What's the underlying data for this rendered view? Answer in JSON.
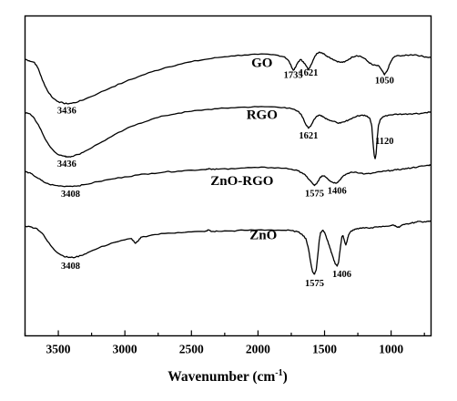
{
  "chart_data": {
    "type": "line",
    "title": "",
    "xlabel": {
      "main": "Wavenumber (cm",
      "sup": "-1",
      "close": ")"
    },
    "ylabel": "",
    "xlim": [
      3750,
      700
    ],
    "x_reversed": true,
    "y_axis_shown": false,
    "grid": false,
    "xticks": [
      3500,
      3000,
      2500,
      2000,
      1500,
      1000
    ],
    "xtick_labels": [
      "3500",
      "3000",
      "2500",
      "2000",
      "1500",
      "1000"
    ],
    "y_units": "stacked transmittance (arbitrary offset units, 0 = bottom of frame, 100 = top)",
    "series": [
      {
        "name": "GO",
        "points": [
          [
            3750,
            86.5
          ],
          [
            3720,
            86.0
          ],
          [
            3680,
            85.5
          ],
          [
            3650,
            83.5
          ],
          [
            3620,
            80.0
          ],
          [
            3580,
            76.5
          ],
          [
            3540,
            74.3
          ],
          [
            3500,
            73.2
          ],
          [
            3460,
            72.7
          ],
          [
            3436,
            72.6
          ],
          [
            3400,
            72.7
          ],
          [
            3350,
            73.2
          ],
          [
            3300,
            74.0
          ],
          [
            3200,
            75.8
          ],
          [
            3100,
            77.7
          ],
          [
            3000,
            79.4
          ],
          [
            2900,
            81.0
          ],
          [
            2800,
            82.5
          ],
          [
            2700,
            83.8
          ],
          [
            2600,
            84.8
          ],
          [
            2500,
            85.7
          ],
          [
            2400,
            86.4
          ],
          [
            2300,
            87.0
          ],
          [
            2200,
            87.5
          ],
          [
            2100,
            87.8
          ],
          [
            2000,
            88.0
          ],
          [
            1900,
            87.9
          ],
          [
            1850,
            87.7
          ],
          [
            1800,
            87.2
          ],
          [
            1770,
            86.0
          ],
          [
            1750,
            84.3
          ],
          [
            1735,
            83.0
          ],
          [
            1720,
            83.8
          ],
          [
            1700,
            85.5
          ],
          [
            1680,
            86.4
          ],
          [
            1660,
            85.7
          ],
          [
            1640,
            84.5
          ],
          [
            1621,
            83.2
          ],
          [
            1605,
            84.5
          ],
          [
            1580,
            86.7
          ],
          [
            1560,
            88.2
          ],
          [
            1540,
            88.7
          ],
          [
            1520,
            88.5
          ],
          [
            1500,
            88.0
          ],
          [
            1470,
            87.2
          ],
          [
            1440,
            86.5
          ],
          [
            1410,
            85.9
          ],
          [
            1380,
            85.5
          ],
          [
            1350,
            85.6
          ],
          [
            1320,
            86.4
          ],
          [
            1290,
            87.2
          ],
          [
            1260,
            87.6
          ],
          [
            1230,
            87.4
          ],
          [
            1200,
            86.7
          ],
          [
            1170,
            85.6
          ],
          [
            1140,
            84.7
          ],
          [
            1110,
            84.5
          ],
          [
            1090,
            84.3
          ],
          [
            1070,
            83.0
          ],
          [
            1050,
            81.6
          ],
          [
            1030,
            82.8
          ],
          [
            1010,
            85.0
          ],
          [
            990,
            86.6
          ],
          [
            970,
            87.4
          ],
          [
            940,
            87.6
          ],
          [
            900,
            87.6
          ],
          [
            860,
            87.8
          ],
          [
            820,
            87.9
          ],
          [
            780,
            87.5
          ],
          [
            740,
            87.2
          ],
          [
            700,
            87.0
          ]
        ]
      },
      {
        "name": "RGO",
        "points": [
          [
            3750,
            69.8
          ],
          [
            3720,
            69.5
          ],
          [
            3690,
            68.5
          ],
          [
            3650,
            66.0
          ],
          [
            3610,
            62.5
          ],
          [
            3570,
            59.6
          ],
          [
            3530,
            57.6
          ],
          [
            3490,
            56.5
          ],
          [
            3450,
            56.1
          ],
          [
            3436,
            56.0
          ],
          [
            3400,
            56.1
          ],
          [
            3350,
            56.7
          ],
          [
            3300,
            57.7
          ],
          [
            3200,
            60.0
          ],
          [
            3100,
            62.3
          ],
          [
            3000,
            64.5
          ],
          [
            2900,
            66.3
          ],
          [
            2800,
            67.7
          ],
          [
            2700,
            68.8
          ],
          [
            2600,
            69.6
          ],
          [
            2500,
            70.2
          ],
          [
            2400,
            70.7
          ],
          [
            2300,
            71.0
          ],
          [
            2200,
            71.3
          ],
          [
            2100,
            71.5
          ],
          [
            2000,
            71.6
          ],
          [
            1900,
            71.6
          ],
          [
            1800,
            71.4
          ],
          [
            1750,
            71.0
          ],
          [
            1700,
            70.2
          ],
          [
            1680,
            69.4
          ],
          [
            1660,
            68.0
          ],
          [
            1640,
            66.0
          ],
          [
            1621,
            64.9
          ],
          [
            1600,
            65.9
          ],
          [
            1580,
            67.6
          ],
          [
            1560,
            68.6
          ],
          [
            1540,
            69.0
          ],
          [
            1520,
            68.8
          ],
          [
            1500,
            68.2
          ],
          [
            1470,
            67.6
          ],
          [
            1440,
            67.1
          ],
          [
            1410,
            66.7
          ],
          [
            1380,
            66.5
          ],
          [
            1350,
            66.9
          ],
          [
            1320,
            67.5
          ],
          [
            1290,
            68.1
          ],
          [
            1260,
            68.6
          ],
          [
            1230,
            68.9
          ],
          [
            1200,
            69.0
          ],
          [
            1180,
            68.7
          ],
          [
            1160,
            68.0
          ],
          [
            1145,
            65.5
          ],
          [
            1135,
            60.0
          ],
          [
            1127,
            56.5
          ],
          [
            1120,
            55.4
          ],
          [
            1113,
            56.8
          ],
          [
            1105,
            61.5
          ],
          [
            1095,
            65.8
          ],
          [
            1080,
            67.7
          ],
          [
            1060,
            68.5
          ],
          [
            1020,
            69.0
          ],
          [
            980,
            69.2
          ],
          [
            940,
            69.3
          ],
          [
            900,
            69.3
          ],
          [
            860,
            69.4
          ],
          [
            820,
            69.5
          ],
          [
            780,
            69.5
          ],
          [
            740,
            69.8
          ],
          [
            700,
            70.0
          ]
        ]
      },
      {
        "name": "ZnO-RGO",
        "points": [
          [
            3750,
            51.3
          ],
          [
            3720,
            51.0
          ],
          [
            3690,
            50.3
          ],
          [
            3650,
            49.2
          ],
          [
            3610,
            48.1
          ],
          [
            3570,
            47.4
          ],
          [
            3520,
            47.0
          ],
          [
            3470,
            46.8
          ],
          [
            3408,
            46.8
          ],
          [
            3350,
            46.9
          ],
          [
            3300,
            47.3
          ],
          [
            3200,
            48.2
          ],
          [
            3100,
            49.0
          ],
          [
            3000,
            49.7
          ],
          [
            2900,
            50.3
          ],
          [
            2800,
            50.8
          ],
          [
            2700,
            51.2
          ],
          [
            2600,
            51.5
          ],
          [
            2500,
            51.8
          ],
          [
            2400,
            52.0
          ],
          [
            2370,
            52.3
          ],
          [
            2350,
            52.0
          ],
          [
            2300,
            52.1
          ],
          [
            2200,
            52.3
          ],
          [
            2100,
            52.5
          ],
          [
            2000,
            52.6
          ],
          [
            1900,
            52.6
          ],
          [
            1800,
            52.4
          ],
          [
            1750,
            52.1
          ],
          [
            1700,
            51.6
          ],
          [
            1670,
            51.0
          ],
          [
            1640,
            50.0
          ],
          [
            1610,
            48.6
          ],
          [
            1590,
            47.6
          ],
          [
            1575,
            47.0
          ],
          [
            1560,
            47.5
          ],
          [
            1540,
            49.0
          ],
          [
            1520,
            50.0
          ],
          [
            1500,
            50.0
          ],
          [
            1480,
            49.3
          ],
          [
            1460,
            48.5
          ],
          [
            1440,
            48.0
          ],
          [
            1420,
            47.8
          ],
          [
            1406,
            47.9
          ],
          [
            1390,
            48.5
          ],
          [
            1370,
            49.5
          ],
          [
            1340,
            50.5
          ],
          [
            1310,
            51.0
          ],
          [
            1270,
            51.2
          ],
          [
            1230,
            50.9
          ],
          [
            1200,
            50.6
          ],
          [
            1160,
            50.7
          ],
          [
            1120,
            51.0
          ],
          [
            1080,
            51.3
          ],
          [
            1040,
            51.5
          ],
          [
            1000,
            51.7
          ],
          [
            960,
            51.9
          ],
          [
            920,
            52.1
          ],
          [
            880,
            52.3
          ],
          [
            840,
            52.6
          ],
          [
            800,
            52.8
          ],
          [
            760,
            53.1
          ],
          [
            720,
            53.3
          ],
          [
            700,
            53.5
          ]
        ]
      },
      {
        "name": "ZnO",
        "points": [
          [
            3750,
            34.3
          ],
          [
            3700,
            34.0
          ],
          [
            3660,
            33.5
          ],
          [
            3620,
            32.0
          ],
          [
            3580,
            29.5
          ],
          [
            3540,
            27.4
          ],
          [
            3500,
            25.8
          ],
          [
            3460,
            24.9
          ],
          [
            3430,
            24.6
          ],
          [
            3408,
            24.5
          ],
          [
            3370,
            24.6
          ],
          [
            3330,
            25.1
          ],
          [
            3280,
            26.0
          ],
          [
            3200,
            27.4
          ],
          [
            3100,
            29.0
          ],
          [
            3000,
            30.0
          ],
          [
            2950,
            30.4
          ],
          [
            2920,
            28.9
          ],
          [
            2900,
            29.6
          ],
          [
            2880,
            30.8
          ],
          [
            2800,
            31.5
          ],
          [
            2700,
            32.0
          ],
          [
            2600,
            32.3
          ],
          [
            2500,
            32.5
          ],
          [
            2400,
            32.6
          ],
          [
            2370,
            33.1
          ],
          [
            2350,
            32.6
          ],
          [
            2300,
            32.7
          ],
          [
            2200,
            32.8
          ],
          [
            2100,
            33.0
          ],
          [
            2000,
            33.1
          ],
          [
            1900,
            33.1
          ],
          [
            1800,
            33.0
          ],
          [
            1750,
            32.9
          ],
          [
            1700,
            32.5
          ],
          [
            1670,
            31.8
          ],
          [
            1640,
            30.4
          ],
          [
            1620,
            27.0
          ],
          [
            1600,
            22.0
          ],
          [
            1590,
            20.0
          ],
          [
            1575,
            19.3
          ],
          [
            1562,
            20.8
          ],
          [
            1550,
            25.5
          ],
          [
            1540,
            29.8
          ],
          [
            1530,
            32.3
          ],
          [
            1515,
            33.0
          ],
          [
            1500,
            32.4
          ],
          [
            1480,
            30.0
          ],
          [
            1460,
            27.5
          ],
          [
            1440,
            25.0
          ],
          [
            1420,
            22.5
          ],
          [
            1406,
            21.8
          ],
          [
            1395,
            23.0
          ],
          [
            1380,
            28.0
          ],
          [
            1370,
            31.0
          ],
          [
            1360,
            31.2
          ],
          [
            1350,
            29.6
          ],
          [
            1340,
            28.4
          ],
          [
            1330,
            29.8
          ],
          [
            1320,
            31.5
          ],
          [
            1300,
            32.8
          ],
          [
            1270,
            33.4
          ],
          [
            1240,
            33.6
          ],
          [
            1200,
            33.7
          ],
          [
            1150,
            33.8
          ],
          [
            1100,
            34.0
          ],
          [
            1050,
            34.2
          ],
          [
            1000,
            34.5
          ],
          [
            980,
            34.6
          ],
          [
            960,
            34.2
          ],
          [
            940,
            33.9
          ],
          [
            925,
            34.4
          ],
          [
            900,
            34.8
          ],
          [
            860,
            35.1
          ],
          [
            820,
            35.5
          ],
          [
            780,
            35.8
          ],
          [
            740,
            35.6
          ],
          [
            700,
            36.0
          ]
        ]
      }
    ],
    "series_labels": [
      {
        "text": "GO",
        "x": 1970,
        "y": 84.0
      },
      {
        "text": "RGO",
        "x": 1970,
        "y": 67.8
      },
      {
        "text": "ZnO-RGO",
        "x": 2120,
        "y": 47.2
      },
      {
        "text": "ZnO",
        "x": 1960,
        "y": 30.2
      }
    ],
    "annotations": [
      {
        "text": "3436",
        "x": 3436,
        "y": 69.5
      },
      {
        "text": "1735",
        "x": 1735,
        "y": 80.6
      },
      {
        "text": "1621",
        "x": 1621,
        "y": 81.3
      },
      {
        "text": "1050",
        "x": 1050,
        "y": 78.9
      },
      {
        "text": "3436",
        "x": 3436,
        "y": 52.9
      },
      {
        "text": "1621",
        "x": 1621,
        "y": 61.7
      },
      {
        "text": "1120",
        "x": 1050,
        "y": 60.0
      },
      {
        "text": "3408",
        "x": 3408,
        "y": 43.4
      },
      {
        "text": "1575",
        "x": 1575,
        "y": 43.6
      },
      {
        "text": "1406",
        "x": 1406,
        "y": 44.4
      },
      {
        "text": "3408",
        "x": 3408,
        "y": 21.0
      },
      {
        "text": "1575",
        "x": 1575,
        "y": 15.5
      },
      {
        "text": "1406",
        "x": 1370,
        "y": 18.4
      }
    ]
  }
}
